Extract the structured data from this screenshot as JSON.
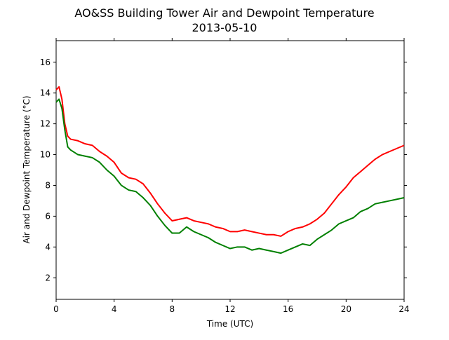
{
  "chart_data": {
    "type": "line",
    "title": "AO&SS Building Tower Air and Dewpoint Temperature",
    "subtitle": "2013-05-10",
    "xlabel": "Time (UTC)",
    "ylabel": "Air and Dewpoint Temperature (°C)",
    "xlim": [
      0,
      24
    ],
    "ylim": [
      0.6,
      17.4
    ],
    "xticks": [
      0,
      4,
      8,
      12,
      16,
      20,
      24
    ],
    "yticks": [
      2,
      4,
      6,
      8,
      10,
      12,
      14,
      16
    ],
    "grid": false,
    "legend": "none",
    "series": [
      {
        "color": "#ff0000",
        "x": [
          0,
          0.2,
          0.4,
          0.6,
          0.8,
          1.0,
          1.5,
          2.0,
          2.5,
          3.0,
          3.5,
          4.0,
          4.5,
          5.0,
          5.5,
          6.0,
          6.5,
          7.0,
          7.5,
          8.0,
          8.5,
          9.0,
          9.5,
          10.0,
          10.5,
          11.0,
          11.5,
          12.0,
          12.5,
          13.0,
          13.5,
          14.0,
          14.5,
          15.0,
          15.5,
          16.0,
          16.5,
          17.0,
          17.5,
          18.0,
          18.5,
          19.0,
          19.5,
          20.0,
          20.5,
          21.0,
          21.5,
          22.0,
          22.5,
          23.0,
          23.5,
          24.0
        ],
        "y": [
          14.2,
          14.4,
          13.6,
          12.0,
          11.2,
          11.0,
          10.9,
          10.7,
          10.6,
          10.2,
          9.9,
          9.5,
          8.8,
          8.5,
          8.4,
          8.1,
          7.5,
          6.8,
          6.2,
          5.7,
          5.8,
          5.9,
          5.7,
          5.6,
          5.5,
          5.3,
          5.2,
          5.0,
          5.0,
          5.1,
          5.0,
          4.9,
          4.8,
          4.8,
          4.7,
          5.0,
          5.2,
          5.3,
          5.5,
          5.8,
          6.2,
          6.8,
          7.4,
          7.9,
          8.5,
          8.9,
          9.3,
          9.7,
          10.0,
          10.2,
          10.4,
          10.6
        ]
      },
      {
        "color": "#008000",
        "x": [
          0,
          0.2,
          0.4,
          0.6,
          0.8,
          1.0,
          1.5,
          2.0,
          2.5,
          3.0,
          3.5,
          4.0,
          4.5,
          5.0,
          5.5,
          6.0,
          6.5,
          7.0,
          7.5,
          8.0,
          8.5,
          9.0,
          9.5,
          10.0,
          10.5,
          11.0,
          11.5,
          12.0,
          12.5,
          13.0,
          13.5,
          14.0,
          14.5,
          15.0,
          15.5,
          16.0,
          16.5,
          17.0,
          17.5,
          18.0,
          18.5,
          19.0,
          19.5,
          20.0,
          20.5,
          21.0,
          21.5,
          22.0,
          22.5,
          23.0,
          23.5,
          24.0
        ],
        "y": [
          13.4,
          13.6,
          13.0,
          11.6,
          10.5,
          10.3,
          10.0,
          9.9,
          9.8,
          9.5,
          9.0,
          8.6,
          8.0,
          7.7,
          7.6,
          7.2,
          6.7,
          6.0,
          5.4,
          4.9,
          4.9,
          5.3,
          5.0,
          4.8,
          4.6,
          4.3,
          4.1,
          3.9,
          4.0,
          4.0,
          3.8,
          3.9,
          3.8,
          3.7,
          3.6,
          3.8,
          4.0,
          4.2,
          4.1,
          4.5,
          4.8,
          5.1,
          5.5,
          5.7,
          5.9,
          6.3,
          6.5,
          6.8,
          6.9,
          7.0,
          7.1,
          7.2
        ]
      }
    ]
  }
}
